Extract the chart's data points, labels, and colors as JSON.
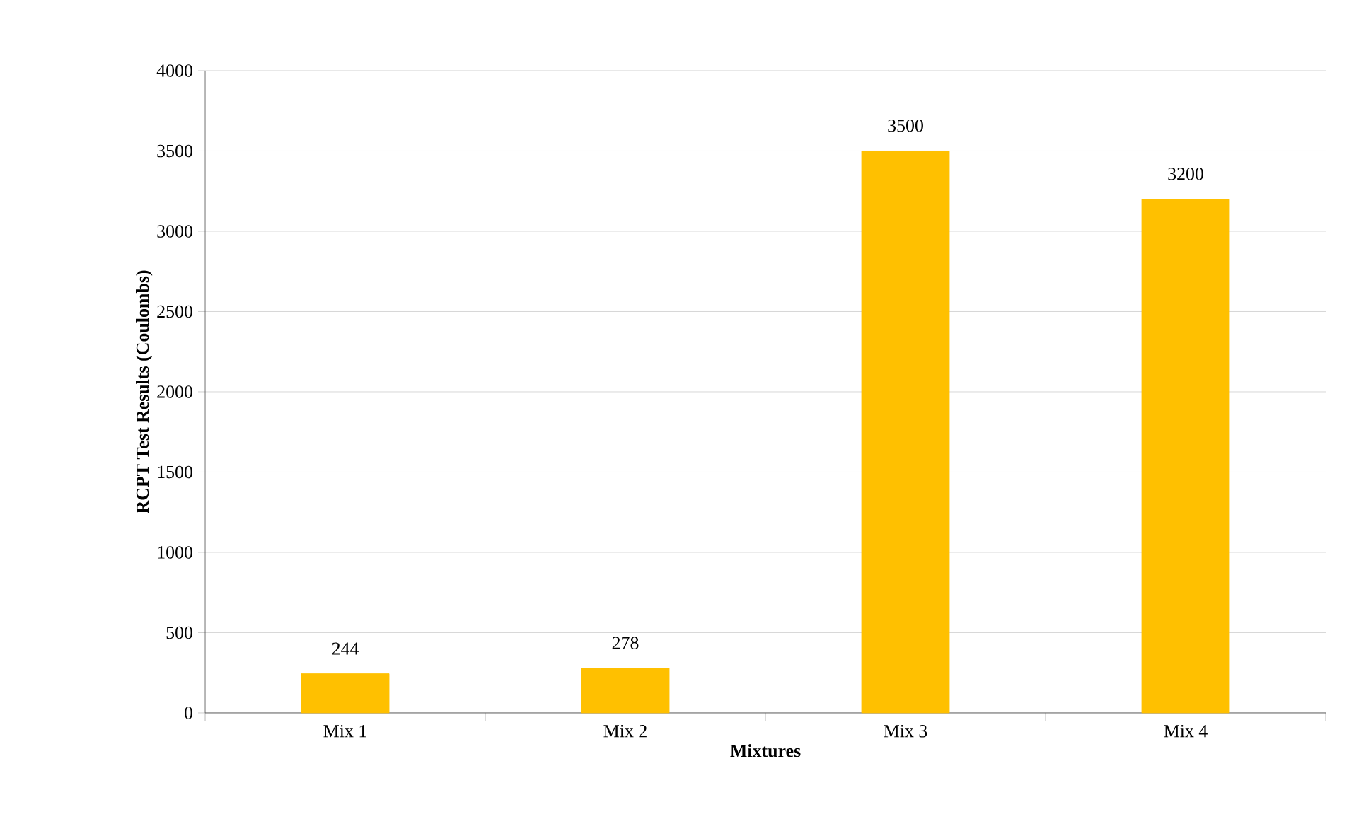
{
  "chart_data": {
    "type": "bar",
    "xlabel": "Mixtures",
    "ylabel": "RCPT Test Results (Coulombs)",
    "categories": [
      "Mix 1",
      "Mix 2",
      "Mix 3",
      "Mix 4"
    ],
    "values": [
      244,
      278,
      3500,
      3200
    ],
    "color": "#ffc000",
    "ylim": [
      0,
      4000
    ],
    "yticks": [
      0,
      500,
      1000,
      1500,
      2000,
      2500,
      3000,
      3500,
      4000
    ],
    "grid": "y",
    "data_labels": true
  }
}
